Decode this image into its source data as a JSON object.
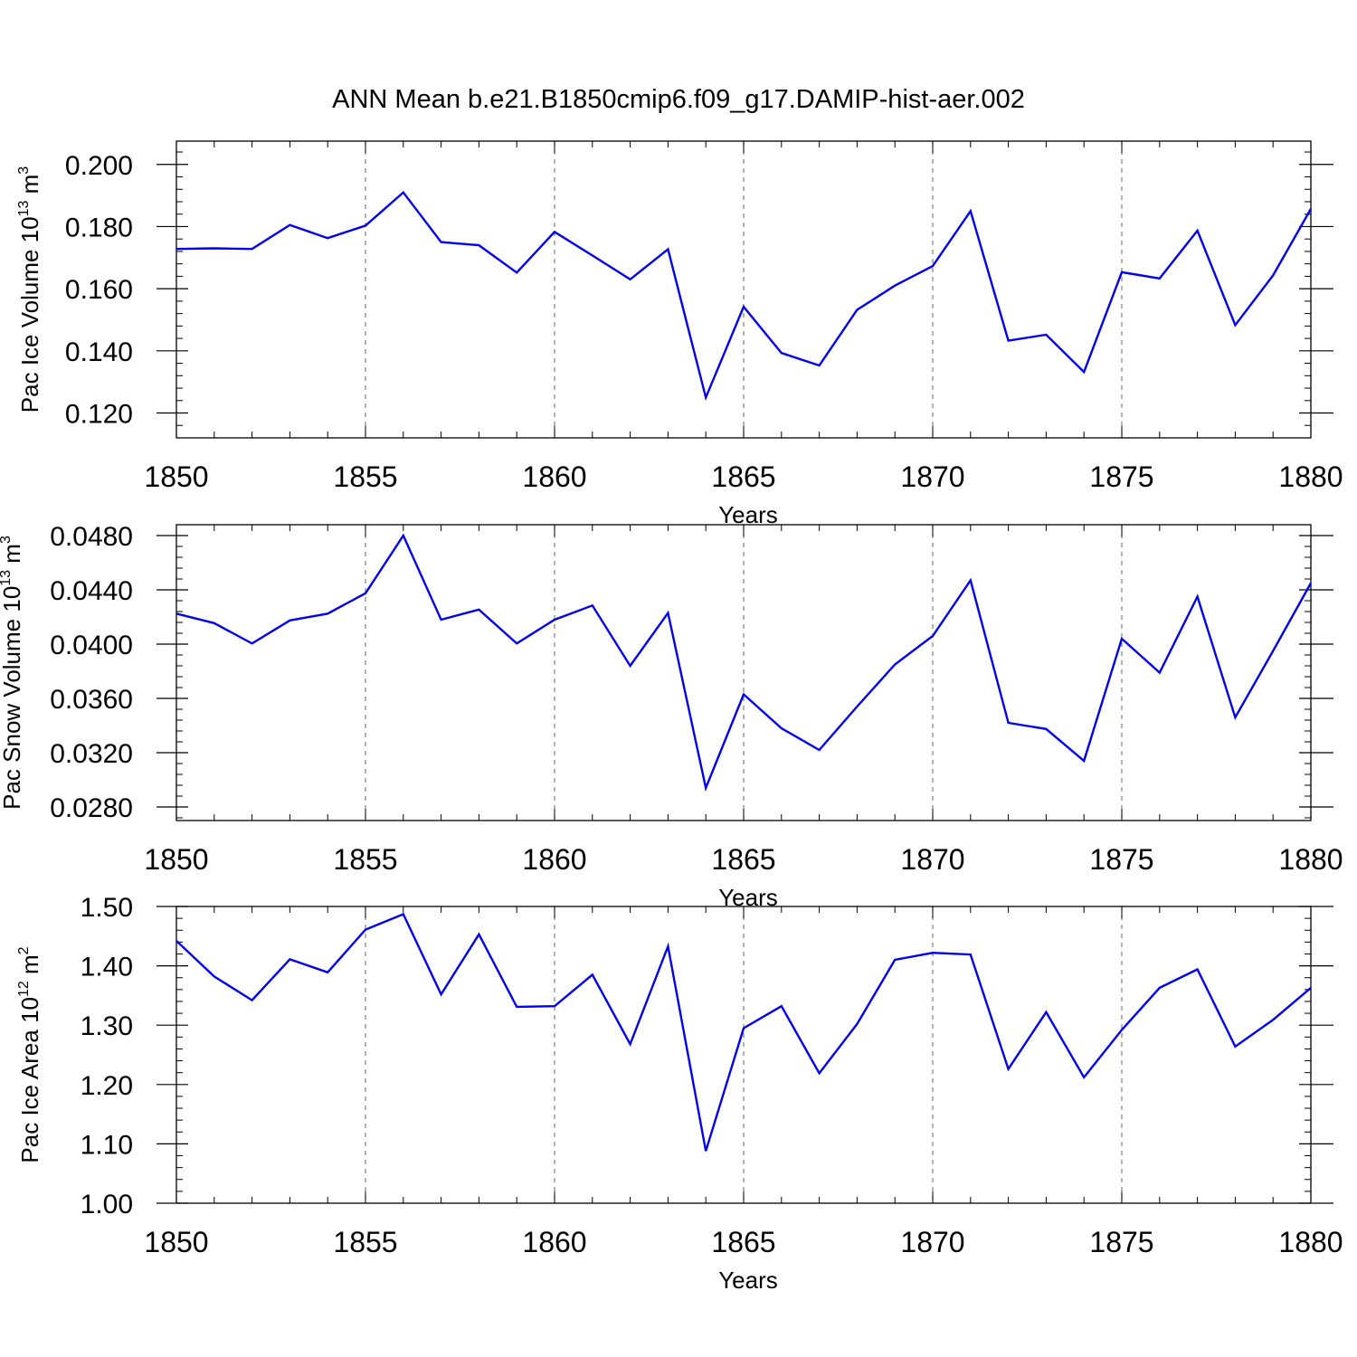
{
  "title": "ANN Mean b.e21.B1850cmip6.f09_g17.DAMIP-hist-aer.002",
  "colors": {
    "line": "#0000ee",
    "axis": "#000000",
    "grid": "#808080"
  },
  "chart_data": [
    {
      "type": "line",
      "title": "ANN Mean b.e21.B1850cmip6.f09_g17.DAMIP-hist-aer.002",
      "xlabel": "Years",
      "ylabel": {
        "prefix": "Pac Ice Volume 10",
        "exp": "13",
        "unit": " m",
        "unit_exp": "3"
      },
      "xlim": [
        1850,
        1880
      ],
      "ylim": [
        0.112,
        0.2075
      ],
      "x_ticks": [
        1850,
        1855,
        1860,
        1865,
        1870,
        1875,
        1880
      ],
      "x_tick_labels": [
        "1850",
        "1855",
        "1860",
        "1865",
        "1870",
        "1875",
        "1880"
      ],
      "y_ticks": [
        0.12,
        0.14,
        0.16,
        0.18,
        0.2
      ],
      "y_tick_labels": [
        "0.120",
        "0.140",
        "0.160",
        "0.180",
        "0.200"
      ],
      "y_minor_step": 0.004,
      "grid": "vertical dashed at major x ticks",
      "x": [
        1850,
        1851,
        1852,
        1853,
        1854,
        1855,
        1856,
        1857,
        1858,
        1859,
        1860,
        1861,
        1862,
        1863,
        1864,
        1865,
        1866,
        1867,
        1868,
        1869,
        1870,
        1871,
        1872,
        1873,
        1874,
        1875,
        1876,
        1877,
        1878,
        1879,
        1880
      ],
      "series": [
        {
          "name": "Pac Ice Volume",
          "values": [
            0.1728,
            0.173,
            0.1728,
            0.1805,
            0.1763,
            0.1803,
            0.191,
            0.175,
            0.174,
            0.1652,
            0.1783,
            0.1707,
            0.163,
            0.1727,
            0.125,
            0.1542,
            0.1393,
            0.1353,
            0.1532,
            0.161,
            0.1673,
            0.185,
            0.1433,
            0.1452,
            0.1332,
            0.1653,
            0.1633,
            0.1787,
            0.1483,
            0.1643,
            0.1857
          ]
        }
      ]
    },
    {
      "type": "line",
      "xlabel": "Years",
      "ylabel": {
        "prefix": "Pac Snow Volume 10",
        "exp": "13",
        "unit": " m",
        "unit_exp": "3"
      },
      "xlim": [
        1850,
        1880
      ],
      "ylim": [
        0.027,
        0.0488
      ],
      "x_ticks": [
        1850,
        1855,
        1860,
        1865,
        1870,
        1875,
        1880
      ],
      "x_tick_labels": [
        "1850",
        "1855",
        "1860",
        "1865",
        "1870",
        "1875",
        "1880"
      ],
      "y_ticks": [
        0.028,
        0.032,
        0.036,
        0.04,
        0.044,
        0.048
      ],
      "y_tick_labels": [
        "0.0280",
        "0.0320",
        "0.0360",
        "0.0400",
        "0.0440",
        "0.0480"
      ],
      "y_minor_step": 0.0008,
      "grid": "vertical dashed at major x ticks",
      "x": [
        1850,
        1851,
        1852,
        1853,
        1854,
        1855,
        1856,
        1857,
        1858,
        1859,
        1860,
        1861,
        1862,
        1863,
        1864,
        1865,
        1866,
        1867,
        1868,
        1869,
        1870,
        1871,
        1872,
        1873,
        1874,
        1875,
        1876,
        1877,
        1878,
        1879,
        1880
      ],
      "series": [
        {
          "name": "Pac Snow Volume",
          "values": [
            0.04225,
            0.04155,
            0.04005,
            0.04175,
            0.04225,
            0.04375,
            0.048,
            0.0418,
            0.04255,
            0.04005,
            0.0418,
            0.04285,
            0.0384,
            0.0423,
            0.0294,
            0.0363,
            0.0338,
            0.0322,
            0.0354,
            0.0385,
            0.0406,
            0.0447,
            0.0342,
            0.03375,
            0.0314,
            0.0404,
            0.0379,
            0.0435,
            0.0346,
            0.0395,
            0.0445
          ]
        }
      ]
    },
    {
      "type": "line",
      "xlabel": "Years",
      "ylabel": {
        "prefix": "Pac Ice Area 10",
        "exp": "12",
        "unit": " m",
        "unit_exp": "2"
      },
      "xlim": [
        1850,
        1880
      ],
      "ylim": [
        1.0,
        1.5
      ],
      "x_ticks": [
        1850,
        1855,
        1860,
        1865,
        1870,
        1875,
        1880
      ],
      "x_tick_labels": [
        "1850",
        "1855",
        "1860",
        "1865",
        "1870",
        "1875",
        "1880"
      ],
      "y_ticks": [
        1.0,
        1.1,
        1.2,
        1.3,
        1.4,
        1.5
      ],
      "y_tick_labels": [
        "1.00",
        "1.10",
        "1.20",
        "1.30",
        "1.40",
        "1.50"
      ],
      "y_minor_step": 0.02,
      "grid": "vertical dashed at major x ticks",
      "x": [
        1850,
        1851,
        1852,
        1853,
        1854,
        1855,
        1856,
        1857,
        1858,
        1859,
        1860,
        1861,
        1862,
        1863,
        1864,
        1865,
        1866,
        1867,
        1868,
        1869,
        1870,
        1871,
        1872,
        1873,
        1874,
        1875,
        1876,
        1877,
        1878,
        1879,
        1880
      ],
      "series": [
        {
          "name": "Pac Ice Area",
          "values": [
            1.442,
            1.382,
            1.342,
            1.411,
            1.389,
            1.461,
            1.487,
            1.352,
            1.453,
            1.331,
            1.332,
            1.385,
            1.268,
            1.433,
            1.088,
            1.295,
            1.332,
            1.219,
            1.302,
            1.41,
            1.422,
            1.419,
            1.226,
            1.322,
            1.212,
            1.292,
            1.363,
            1.394,
            1.264,
            1.309,
            1.363
          ]
        }
      ]
    }
  ]
}
